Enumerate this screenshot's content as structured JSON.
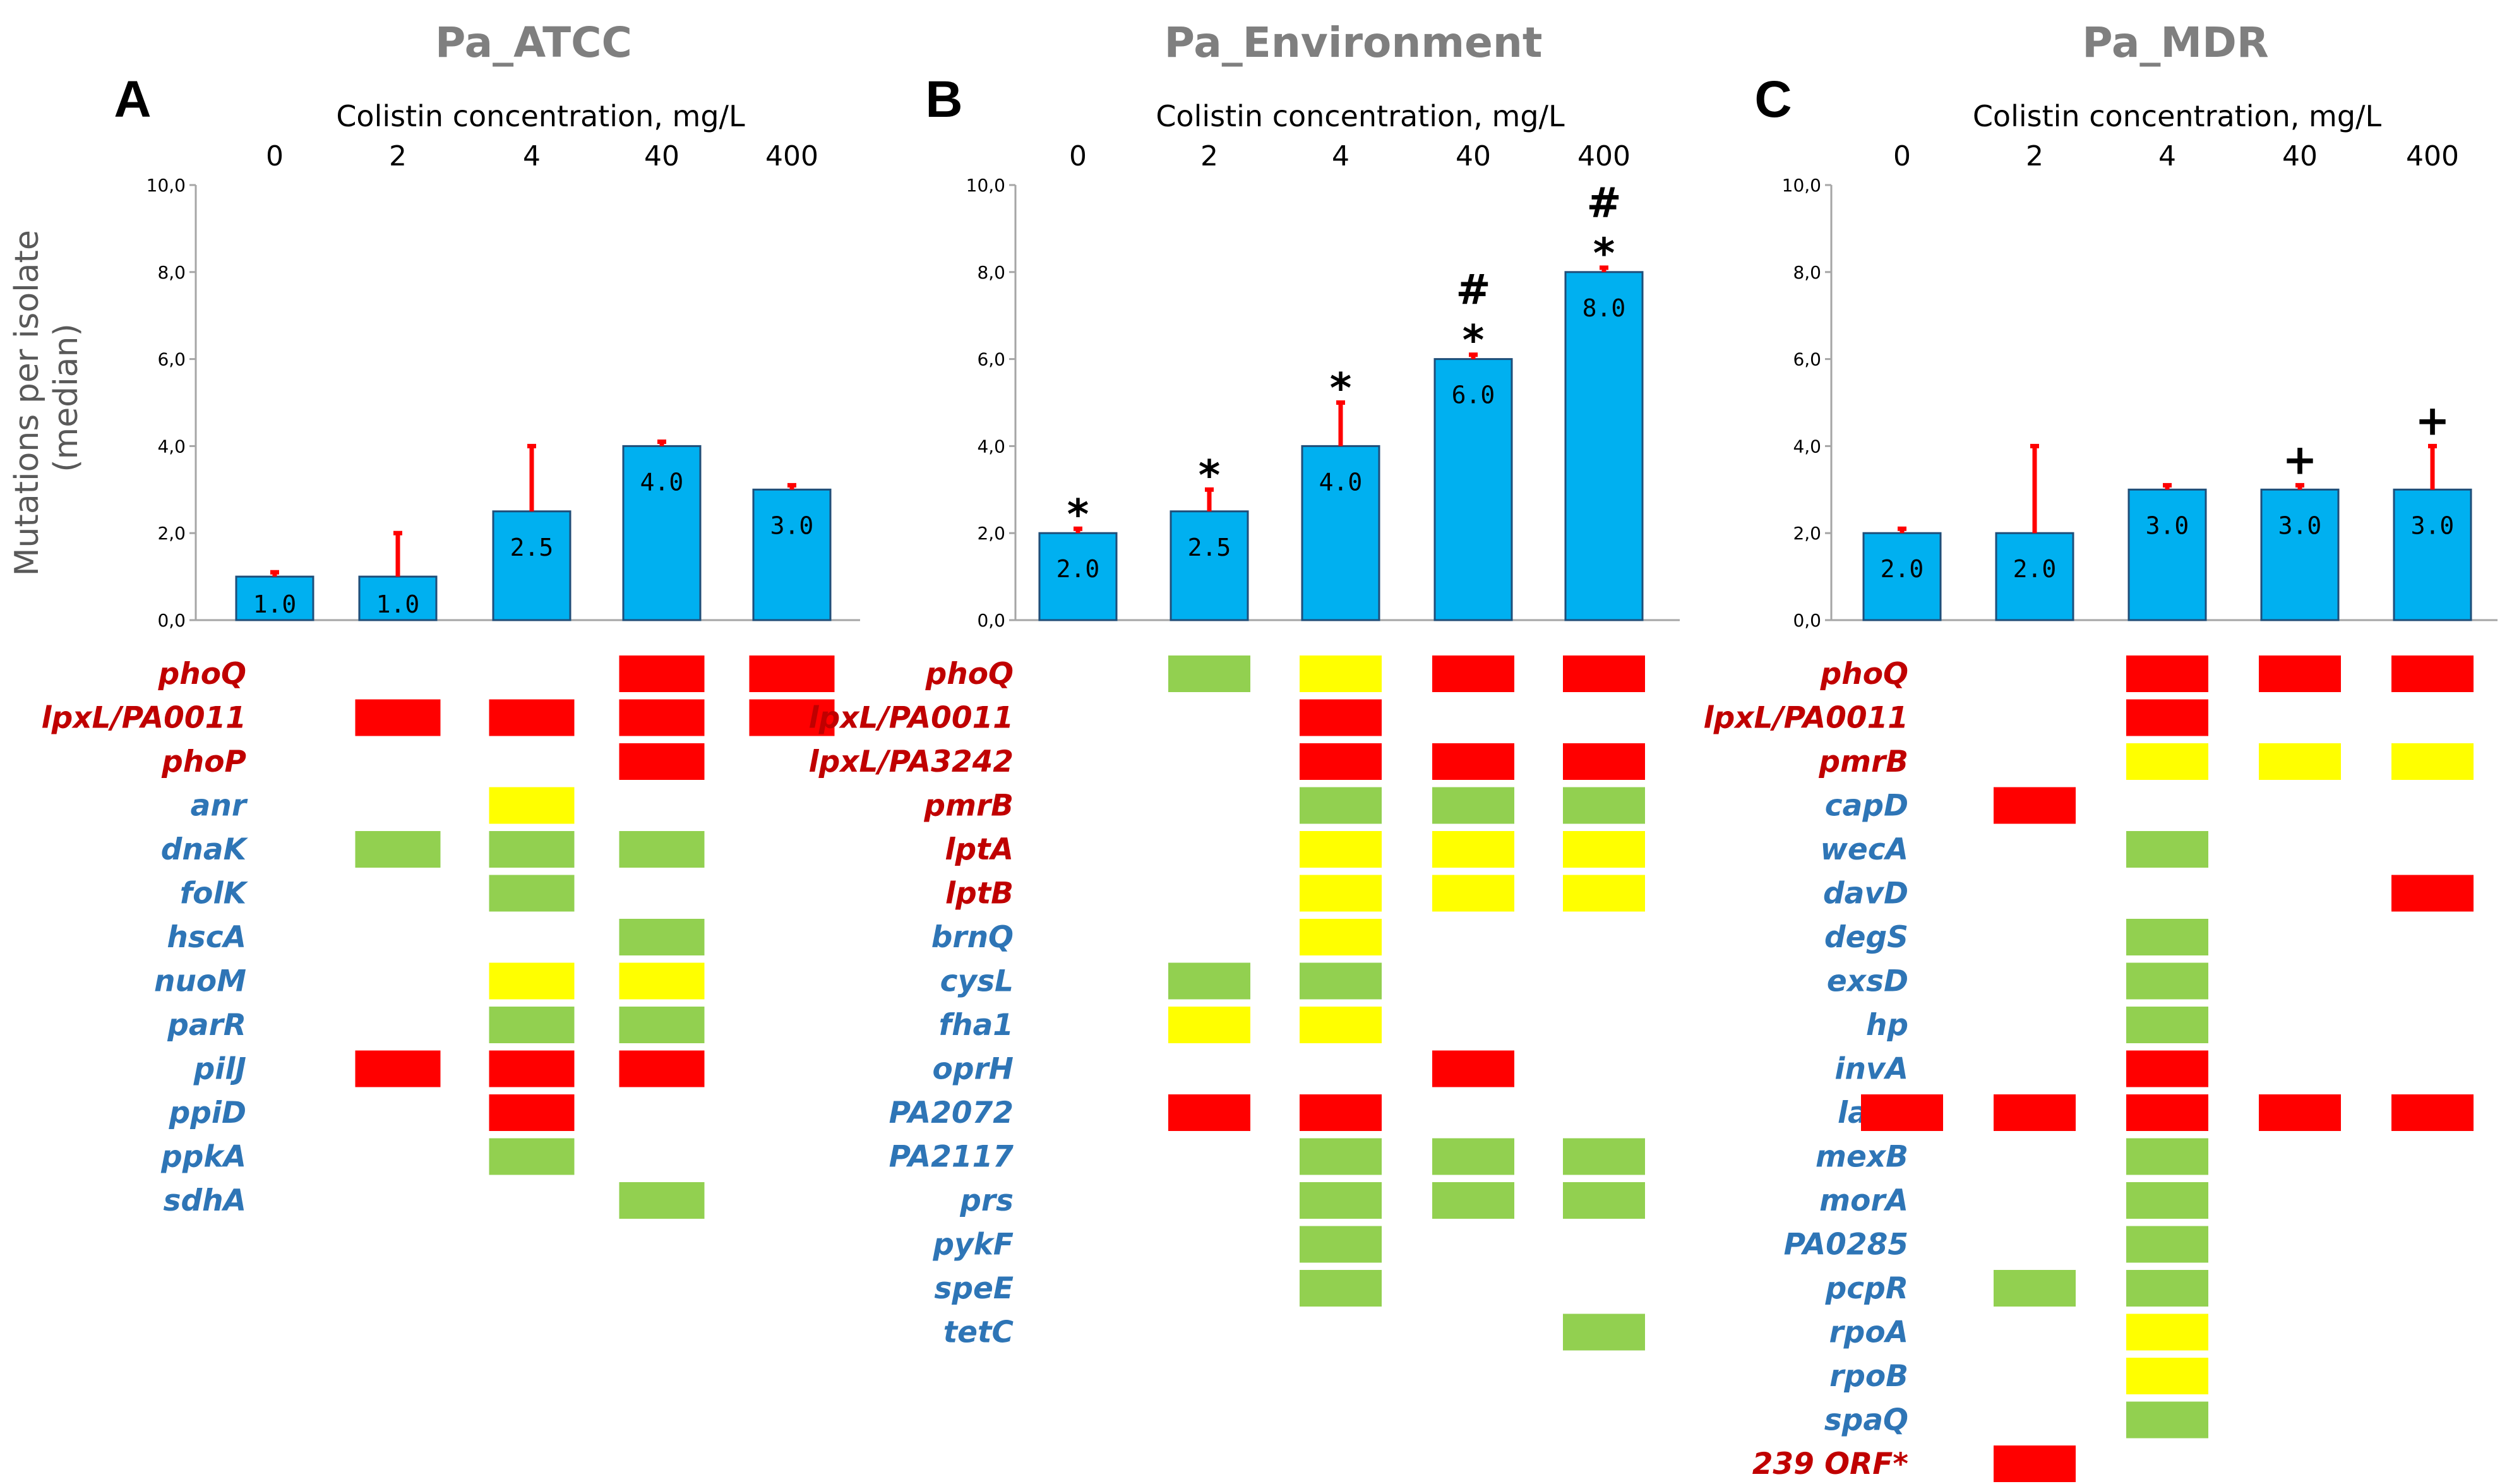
{
  "figure": {
    "y_axis_label_line1": "Mutations per isolate",
    "y_axis_label_line2": "(median)"
  },
  "legend_colors": {
    "red": "#ff0000",
    "yellow": "#ffff00",
    "green": "#92d050",
    "bar_fill": "#00b0f0",
    "error_bar": "#ff0000",
    "gene_red_text": "#c00000",
    "gene_blue_text": "#2e75b6"
  },
  "chart_data": [
    {
      "type": "bar",
      "panel": "A",
      "title": "Pa_ATCC",
      "xlabel": "Colistin concentration, mg/L",
      "ylabel": "Mutations per isolate (median)",
      "categories": [
        "0",
        "2",
        "4",
        "40",
        "400"
      ],
      "values": [
        1.0,
        1.0,
        2.5,
        4.0,
        3.0
      ],
      "value_labels": [
        "1.0",
        "1.0",
        "2.5",
        "4.0",
        "3.0"
      ],
      "error_upper": [
        1.1,
        2.0,
        4.0,
        4.1,
        3.1
      ],
      "symbols": [
        [],
        [],
        [],
        [],
        []
      ],
      "ylim": [
        0,
        10
      ],
      "yticks": [
        "0,0",
        "2,0",
        "4,0",
        "6,0",
        "8,0",
        "10,0"
      ],
      "genes": [
        {
          "name": "phoQ",
          "color": "red",
          "cells": [
            null,
            null,
            null,
            "red",
            "red"
          ]
        },
        {
          "name": "lpxL/PA0011",
          "color": "red",
          "cells": [
            null,
            "red",
            "red",
            "red",
            "red"
          ]
        },
        {
          "name": "phoP",
          "color": "red",
          "cells": [
            null,
            null,
            null,
            "red",
            null
          ]
        },
        {
          "name": "anr",
          "color": "blue",
          "cells": [
            null,
            null,
            "yellow",
            null,
            null
          ]
        },
        {
          "name": "dnaK",
          "color": "blue",
          "cells": [
            null,
            "green",
            "green",
            "green",
            null
          ]
        },
        {
          "name": "folK",
          "color": "blue",
          "cells": [
            null,
            null,
            "green",
            null,
            null
          ]
        },
        {
          "name": "hscA",
          "color": "blue",
          "cells": [
            null,
            null,
            null,
            "green",
            null
          ]
        },
        {
          "name": "nuoM",
          "color": "blue",
          "cells": [
            null,
            null,
            "yellow",
            "yellow",
            null
          ]
        },
        {
          "name": "parR",
          "color": "blue",
          "cells": [
            null,
            null,
            "green",
            "green",
            null
          ]
        },
        {
          "name": "pilJ",
          "color": "blue",
          "cells": [
            null,
            "red",
            "red",
            "red",
            null
          ]
        },
        {
          "name": "ppiD",
          "color": "blue",
          "cells": [
            null,
            null,
            "red",
            null,
            null
          ]
        },
        {
          "name": "ppkA",
          "color": "blue",
          "cells": [
            null,
            null,
            "green",
            null,
            null
          ]
        },
        {
          "name": "sdhA",
          "color": "blue",
          "cells": [
            null,
            null,
            null,
            "green",
            null
          ]
        }
      ]
    },
    {
      "type": "bar",
      "panel": "B",
      "title": "Pa_Environment",
      "xlabel": "Colistin concentration, mg/L",
      "ylabel": "Mutations per isolate (median)",
      "categories": [
        "0",
        "2",
        "4",
        "40",
        "400"
      ],
      "values": [
        2.0,
        2.5,
        4.0,
        6.0,
        8.0
      ],
      "value_labels": [
        "2.0",
        "2.5",
        "4.0",
        "6.0",
        "8.0"
      ],
      "error_upper": [
        2.1,
        3.0,
        5.0,
        6.1,
        8.1
      ],
      "symbols": [
        [
          "*"
        ],
        [
          "*"
        ],
        [
          "*"
        ],
        [
          "#",
          "*"
        ],
        [
          "#",
          "*"
        ]
      ],
      "ylim": [
        0,
        10
      ],
      "yticks": [
        "0,0",
        "2,0",
        "4,0",
        "6,0",
        "8,0",
        "10,0"
      ],
      "genes": [
        {
          "name": "phoQ",
          "color": "red",
          "cells": [
            null,
            "green",
            "yellow",
            "red",
            "red"
          ]
        },
        {
          "name": "lpxL/PA0011",
          "color": "red",
          "cells": [
            null,
            null,
            "red",
            null,
            null
          ]
        },
        {
          "name": "lpxL/PA3242",
          "color": "red",
          "cells": [
            null,
            null,
            "red",
            "red",
            "red"
          ]
        },
        {
          "name": "pmrB",
          "color": "red",
          "cells": [
            null,
            null,
            "green",
            "green",
            "green"
          ]
        },
        {
          "name": "lptA",
          "color": "red",
          "cells": [
            null,
            null,
            "yellow",
            "yellow",
            "yellow"
          ]
        },
        {
          "name": "lptB",
          "color": "red",
          "cells": [
            null,
            null,
            "yellow",
            "yellow",
            "yellow"
          ]
        },
        {
          "name": "brnQ",
          "color": "blue",
          "cells": [
            null,
            null,
            "yellow",
            null,
            null
          ]
        },
        {
          "name": "cysL",
          "color": "blue",
          "cells": [
            null,
            "green",
            "green",
            null,
            null
          ]
        },
        {
          "name": "fha1",
          "color": "blue",
          "cells": [
            null,
            "yellow",
            "yellow",
            null,
            null
          ]
        },
        {
          "name": "oprH",
          "color": "blue",
          "cells": [
            null,
            null,
            null,
            "red",
            null
          ]
        },
        {
          "name": "PA2072",
          "color": "blue",
          "cells": [
            null,
            "red",
            "red",
            null,
            null
          ]
        },
        {
          "name": "PA2117",
          "color": "blue",
          "cells": [
            null,
            null,
            "green",
            "green",
            "green"
          ]
        },
        {
          "name": "prs",
          "color": "blue",
          "cells": [
            null,
            null,
            "green",
            "green",
            "green"
          ]
        },
        {
          "name": "pykF",
          "color": "blue",
          "cells": [
            null,
            null,
            "green",
            null,
            null
          ]
        },
        {
          "name": "speE",
          "color": "blue",
          "cells": [
            null,
            null,
            "green",
            null,
            null
          ]
        },
        {
          "name": "tetC",
          "color": "blue",
          "cells": [
            null,
            null,
            null,
            null,
            "green"
          ]
        }
      ]
    },
    {
      "type": "bar",
      "panel": "C",
      "title": "Pa_MDR",
      "xlabel": "Colistin concentration, mg/L",
      "ylabel": "Mutations per isolate (median)",
      "categories": [
        "0",
        "2",
        "4",
        "40",
        "400"
      ],
      "values": [
        2.0,
        2.0,
        3.0,
        3.0,
        3.0
      ],
      "value_labels": [
        "2.0",
        "2.0",
        "3.0",
        "3.0",
        "3.0"
      ],
      "error_upper": [
        2.1,
        4.0,
        3.1,
        3.1,
        4.0
      ],
      "symbols": [
        [],
        [],
        [],
        [
          "+"
        ],
        [
          "+"
        ]
      ],
      "ylim": [
        0,
        10
      ],
      "yticks": [
        "0,0",
        "2,0",
        "4,0",
        "6,0",
        "8,0",
        "10,0"
      ],
      "genes": [
        {
          "name": "phoQ",
          "color": "red",
          "cells": [
            null,
            null,
            "red",
            "red",
            "red"
          ]
        },
        {
          "name": "lpxL/PA0011",
          "color": "red",
          "cells": [
            null,
            null,
            "red",
            null,
            null
          ]
        },
        {
          "name": "pmrB",
          "color": "red",
          "cells": [
            null,
            null,
            "yellow",
            "yellow",
            "yellow"
          ]
        },
        {
          "name": "capD",
          "color": "blue",
          "cells": [
            null,
            "red",
            null,
            null,
            null
          ]
        },
        {
          "name": "wecA",
          "color": "blue",
          "cells": [
            null,
            null,
            "green",
            null,
            null
          ]
        },
        {
          "name": "davD",
          "color": "blue",
          "cells": [
            null,
            null,
            null,
            null,
            "red"
          ]
        },
        {
          "name": "degS",
          "color": "blue",
          "cells": [
            null,
            null,
            "green",
            null,
            null
          ]
        },
        {
          "name": "exsD",
          "color": "blue",
          "cells": [
            null,
            null,
            "green",
            null,
            null
          ]
        },
        {
          "name": "hp",
          "color": "blue",
          "cells": [
            null,
            null,
            "green",
            null,
            null
          ]
        },
        {
          "name": "invA",
          "color": "blue",
          "cells": [
            null,
            null,
            "red",
            null,
            null
          ]
        },
        {
          "name": "lasR",
          "color": "blue",
          "cells": [
            "red",
            "red",
            "red",
            "red",
            "red"
          ]
        },
        {
          "name": "mexB",
          "color": "blue",
          "cells": [
            null,
            null,
            "green",
            null,
            null
          ]
        },
        {
          "name": "morA",
          "color": "blue",
          "cells": [
            null,
            null,
            "green",
            null,
            null
          ]
        },
        {
          "name": "PA0285",
          "color": "blue",
          "cells": [
            null,
            null,
            "green",
            null,
            null
          ]
        },
        {
          "name": "pcpR",
          "color": "blue",
          "cells": [
            null,
            "green",
            "green",
            null,
            null
          ]
        },
        {
          "name": "rpoA",
          "color": "blue",
          "cells": [
            null,
            null,
            "yellow",
            null,
            null
          ]
        },
        {
          "name": "rpoB",
          "color": "blue",
          "cells": [
            null,
            null,
            "yellow",
            null,
            null
          ]
        },
        {
          "name": "spaQ",
          "color": "blue",
          "cells": [
            null,
            null,
            "green",
            null,
            null
          ]
        },
        {
          "name": "239 ORF*",
          "color": "red",
          "cells": [
            null,
            "red",
            null,
            null,
            null
          ]
        }
      ]
    }
  ]
}
